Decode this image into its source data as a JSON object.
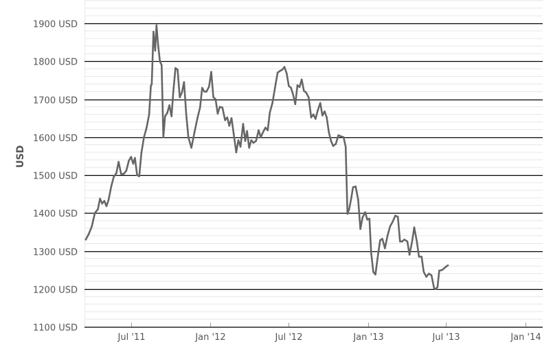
{
  "chart_data": {
    "type": "line",
    "title": "",
    "xlabel": "",
    "ylabel": "USD",
    "ylim": [
      1100,
      1900
    ],
    "xlim": [
      "2011-03-15",
      "2014-02-10"
    ],
    "y_ticks": [
      {
        "value": 1100,
        "label": "1100 USD"
      },
      {
        "value": 1200,
        "label": "1200 USD"
      },
      {
        "value": 1300,
        "label": "1300 USD"
      },
      {
        "value": 1400,
        "label": "1400 USD"
      },
      {
        "value": 1500,
        "label": "1500 USD"
      },
      {
        "value": 1600,
        "label": "1600 USD"
      },
      {
        "value": 1700,
        "label": "1700 USD"
      },
      {
        "value": 1800,
        "label": "1800 USD"
      },
      {
        "value": 1900,
        "label": "1900 USD"
      }
    ],
    "x_ticks": [
      {
        "date": "2011-07-01",
        "label": "Jul '11"
      },
      {
        "date": "2012-01-01",
        "label": "Jan '12"
      },
      {
        "date": "2012-07-01",
        "label": "Jul '12"
      },
      {
        "date": "2013-01-01",
        "label": "Jan '13"
      },
      {
        "date": "2013-07-01",
        "label": "Jul '13"
      },
      {
        "date": "2014-01-01",
        "label": "Jan '14"
      }
    ],
    "grid": {
      "major_y": true,
      "minor_y": true,
      "x": false
    },
    "colors": {
      "line": "#666666",
      "major_grid": "#000000",
      "minor_grid": "#e6e6e6",
      "tick_text": "#555555"
    },
    "series": [
      {
        "points": [
          [
            "2011-03-18",
            1330
          ],
          [
            "2011-03-25",
            1345
          ],
          [
            "2011-04-01",
            1365
          ],
          [
            "2011-04-08",
            1400
          ],
          [
            "2011-04-15",
            1410
          ],
          [
            "2011-04-20",
            1438
          ],
          [
            "2011-04-25",
            1425
          ],
          [
            "2011-04-30",
            1432
          ],
          [
            "2011-05-05",
            1418
          ],
          [
            "2011-05-10",
            1435
          ],
          [
            "2011-05-16",
            1470
          ],
          [
            "2011-05-22",
            1496
          ],
          [
            "2011-05-28",
            1505
          ],
          [
            "2011-06-02",
            1535
          ],
          [
            "2011-06-08",
            1503
          ],
          [
            "2011-06-14",
            1503
          ],
          [
            "2011-06-20",
            1512
          ],
          [
            "2011-06-26",
            1538
          ],
          [
            "2011-07-01",
            1548
          ],
          [
            "2011-07-06",
            1530
          ],
          [
            "2011-07-10",
            1545
          ],
          [
            "2011-07-15",
            1500
          ],
          [
            "2011-07-20",
            1497
          ],
          [
            "2011-07-25",
            1558
          ],
          [
            "2011-07-31",
            1600
          ],
          [
            "2011-08-06",
            1625
          ],
          [
            "2011-08-12",
            1660
          ],
          [
            "2011-08-16",
            1735
          ],
          [
            "2011-08-18",
            1740
          ],
          [
            "2011-08-22",
            1878
          ],
          [
            "2011-08-26",
            1828
          ],
          [
            "2011-08-29",
            1895
          ],
          [
            "2011-09-02",
            1840
          ],
          [
            "2011-09-06",
            1800
          ],
          [
            "2011-09-10",
            1790
          ],
          [
            "2011-09-14",
            1600
          ],
          [
            "2011-09-18",
            1655
          ],
          [
            "2011-09-23",
            1664
          ],
          [
            "2011-09-28",
            1684
          ],
          [
            "2011-10-03",
            1655
          ],
          [
            "2011-10-07",
            1720
          ],
          [
            "2011-10-12",
            1782
          ],
          [
            "2011-10-17",
            1778
          ],
          [
            "2011-10-22",
            1705
          ],
          [
            "2011-10-27",
            1718
          ],
          [
            "2011-11-01",
            1745
          ],
          [
            "2011-11-06",
            1660
          ],
          [
            "2011-11-11",
            1600
          ],
          [
            "2011-11-18",
            1572
          ],
          [
            "2011-11-25",
            1612
          ],
          [
            "2011-12-02",
            1650
          ],
          [
            "2011-12-08",
            1678
          ],
          [
            "2011-12-13",
            1730
          ],
          [
            "2011-12-18",
            1720
          ],
          [
            "2011-12-23",
            1720
          ],
          [
            "2011-12-29",
            1733
          ],
          [
            "2012-01-03",
            1772
          ],
          [
            "2012-01-08",
            1705
          ],
          [
            "2012-01-13",
            1700
          ],
          [
            "2012-01-18",
            1662
          ],
          [
            "2012-01-23",
            1680
          ],
          [
            "2012-01-29",
            1678
          ],
          [
            "2012-02-04",
            1645
          ],
          [
            "2012-02-09",
            1652
          ],
          [
            "2012-02-14",
            1630
          ],
          [
            "2012-02-19",
            1650
          ],
          [
            "2012-02-24",
            1610
          ],
          [
            "2012-03-01",
            1560
          ],
          [
            "2012-03-06",
            1592
          ],
          [
            "2012-03-11",
            1575
          ],
          [
            "2012-03-17",
            1635
          ],
          [
            "2012-03-22",
            1590
          ],
          [
            "2012-03-26",
            1616
          ],
          [
            "2012-03-31",
            1572
          ],
          [
            "2012-04-05",
            1592
          ],
          [
            "2012-04-10",
            1585
          ],
          [
            "2012-04-16",
            1590
          ],
          [
            "2012-04-22",
            1618
          ],
          [
            "2012-04-27",
            1600
          ],
          [
            "2012-05-03",
            1615
          ],
          [
            "2012-05-08",
            1625
          ],
          [
            "2012-05-13",
            1618
          ],
          [
            "2012-05-18",
            1665
          ],
          [
            "2012-05-24",
            1690
          ],
          [
            "2012-05-30",
            1730
          ],
          [
            "2012-06-05",
            1770
          ],
          [
            "2012-06-11",
            1775
          ],
          [
            "2012-06-16",
            1778
          ],
          [
            "2012-06-21",
            1785
          ],
          [
            "2012-06-26",
            1768
          ],
          [
            "2012-07-01",
            1735
          ],
          [
            "2012-07-06",
            1730
          ],
          [
            "2012-07-11",
            1712
          ],
          [
            "2012-07-16",
            1687
          ],
          [
            "2012-07-21",
            1737
          ],
          [
            "2012-07-26",
            1732
          ],
          [
            "2012-07-31",
            1752
          ],
          [
            "2012-08-05",
            1722
          ],
          [
            "2012-08-10",
            1718
          ],
          [
            "2012-08-16",
            1705
          ],
          [
            "2012-08-22",
            1652
          ],
          [
            "2012-08-27",
            1660
          ],
          [
            "2012-09-01",
            1648
          ],
          [
            "2012-09-06",
            1670
          ],
          [
            "2012-09-12",
            1690
          ],
          [
            "2012-09-17",
            1657
          ],
          [
            "2012-09-22",
            1668
          ],
          [
            "2012-09-27",
            1652
          ],
          [
            "2012-10-02",
            1612
          ],
          [
            "2012-10-07",
            1590
          ],
          [
            "2012-10-12",
            1577
          ],
          [
            "2012-10-18",
            1582
          ],
          [
            "2012-10-24",
            1605
          ],
          [
            "2012-10-30",
            1602
          ],
          [
            "2012-11-05",
            1600
          ],
          [
            "2012-11-10",
            1575
          ],
          [
            "2012-11-14",
            1398
          ],
          [
            "2012-11-18",
            1410
          ],
          [
            "2012-11-23",
            1440
          ],
          [
            "2012-11-27",
            1468
          ],
          [
            "2012-12-03",
            1470
          ],
          [
            "2012-12-09",
            1435
          ],
          [
            "2012-12-14",
            1358
          ],
          [
            "2012-12-19",
            1388
          ],
          [
            "2012-12-25",
            1402
          ],
          [
            "2012-12-30",
            1383
          ],
          [
            "2013-01-04",
            1385
          ],
          [
            "2013-01-08",
            1295
          ],
          [
            "2013-01-13",
            1245
          ],
          [
            "2013-01-18",
            1238
          ],
          [
            "2013-01-24",
            1290
          ],
          [
            "2013-01-29",
            1328
          ],
          [
            "2013-02-03",
            1332
          ],
          [
            "2013-02-09",
            1307
          ],
          [
            "2013-02-15",
            1340
          ],
          [
            "2013-02-21",
            1365
          ],
          [
            "2013-02-27",
            1377
          ],
          [
            "2013-03-05",
            1393
          ],
          [
            "2013-03-11",
            1390
          ],
          [
            "2013-03-16",
            1325
          ],
          [
            "2013-03-21",
            1325
          ],
          [
            "2013-03-26",
            1330
          ],
          [
            "2013-04-02",
            1325
          ],
          [
            "2013-04-07",
            1290
          ],
          [
            "2013-04-13",
            1325
          ],
          [
            "2013-04-18",
            1362
          ],
          [
            "2013-04-24",
            1325
          ],
          [
            "2013-04-29",
            1285
          ],
          [
            "2013-05-05",
            1285
          ],
          [
            "2013-05-10",
            1245
          ],
          [
            "2013-05-16",
            1232
          ],
          [
            "2013-05-22",
            1240
          ],
          [
            "2013-05-28",
            1236
          ],
          [
            "2013-06-03",
            1202
          ],
          [
            "2013-06-07",
            1200
          ],
          [
            "2013-06-11",
            1205
          ],
          [
            "2013-06-15",
            1248
          ],
          [
            "2013-06-22",
            1250
          ],
          [
            "2013-06-30",
            1258
          ],
          [
            "2013-07-05",
            1262
          ]
        ]
      }
    ]
  }
}
